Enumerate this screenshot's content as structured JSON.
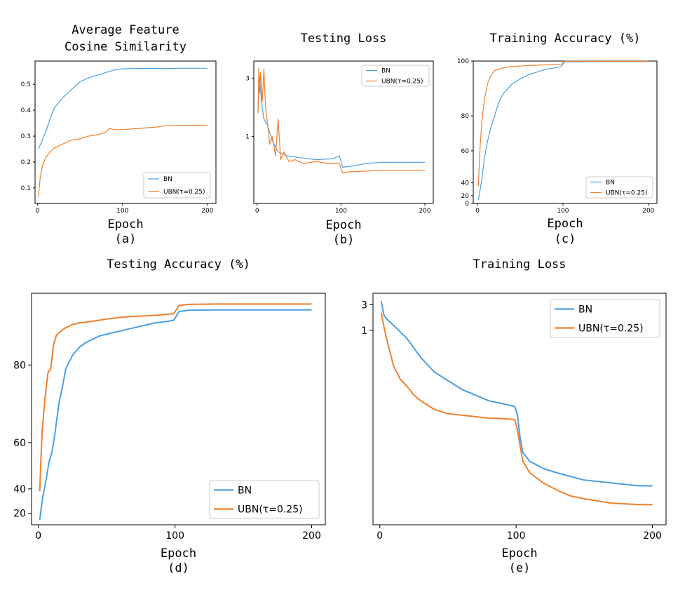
{
  "colors": {
    "bn": "#4a9fe3",
    "ubn": "#f07f2a"
  },
  "chart_data": [
    {
      "id": "a",
      "type": "line",
      "title": [
        "Average Feature",
        "Cosine Similarity"
      ],
      "xlabel": "Epoch",
      "sublabel": "(a)",
      "xlim": [
        -3,
        210
      ],
      "ylim": [
        0.04,
        0.59
      ],
      "xticks": [
        0,
        100,
        200
      ],
      "xtick_labels": [
        "0",
        "100",
        "200"
      ],
      "yticks": [
        0.1,
        0.2,
        0.3,
        0.4,
        0.5
      ],
      "ytick_labels": [
        "0.1",
        "0.2",
        "0.3",
        "0.4",
        "0.5"
      ],
      "legend": {
        "position": "bottom-right",
        "entries": [
          "BN",
          "UBN(τ=0.25)"
        ]
      },
      "series": [
        {
          "name": "BN",
          "points": [
            [
              1,
              0.25
            ],
            [
              5,
              0.28
            ],
            [
              10,
              0.32
            ],
            [
              15,
              0.37
            ],
            [
              20,
              0.41
            ],
            [
              25,
              0.43
            ],
            [
              30,
              0.45
            ],
            [
              40,
              0.48
            ],
            [
              50,
              0.51
            ],
            [
              60,
              0.525
            ],
            [
              70,
              0.535
            ],
            [
              80,
              0.545
            ],
            [
              90,
              0.555
            ],
            [
              100,
              0.56
            ],
            [
              120,
              0.562
            ],
            [
              150,
              0.561
            ],
            [
              170,
              0.562
            ],
            [
              200,
              0.562
            ]
          ]
        },
        {
          "name": "UBN(τ=0.25)",
          "points": [
            [
              1,
              0.065
            ],
            [
              3,
              0.14
            ],
            [
              6,
              0.19
            ],
            [
              10,
              0.22
            ],
            [
              15,
              0.24
            ],
            [
              20,
              0.255
            ],
            [
              30,
              0.27
            ],
            [
              40,
              0.285
            ],
            [
              50,
              0.29
            ],
            [
              60,
              0.3
            ],
            [
              70,
              0.305
            ],
            [
              80,
              0.315
            ],
            [
              85,
              0.33
            ],
            [
              90,
              0.325
            ],
            [
              100,
              0.325
            ],
            [
              120,
              0.33
            ],
            [
              140,
              0.335
            ],
            [
              150,
              0.34
            ],
            [
              175,
              0.342
            ],
            [
              200,
              0.342
            ]
          ]
        }
      ]
    },
    {
      "id": "b",
      "type": "line",
      "title": [
        "Testing Loss"
      ],
      "xlabel": "Epoch",
      "sublabel": "(b)",
      "xlim": [
        -4,
        210
      ],
      "ylim": [
        -1.6,
        4.2
      ],
      "yscale": "symlog",
      "xticks": [
        0,
        100,
        200
      ],
      "xtick_labels": [
        "0",
        "100",
        "200"
      ],
      "yticks": [
        1,
        3
      ],
      "ytick_labels": [
        "1",
        "3"
      ],
      "legend": {
        "position": "top-right",
        "entries": [
          "BN",
          "UBN(τ=0.25)"
        ]
      },
      "series": [
        {
          "name": "BN",
          "points": [
            [
              1,
              1.9
            ],
            [
              3,
              3.1
            ],
            [
              5,
              2.2
            ],
            [
              8,
              1.6
            ],
            [
              12,
              1.4
            ],
            [
              18,
              0.9
            ],
            [
              25,
              0.6
            ],
            [
              35,
              0.5
            ],
            [
              50,
              0.45
            ],
            [
              70,
              0.4
            ],
            [
              90,
              0.42
            ],
            [
              98,
              0.5
            ],
            [
              102,
              0.2
            ],
            [
              110,
              0.22
            ],
            [
              130,
              0.3
            ],
            [
              150,
              0.33
            ],
            [
              175,
              0.33
            ],
            [
              200,
              0.33
            ]
          ]
        },
        {
          "name": "UBN(τ=0.25)",
          "points": [
            [
              1,
              1.8
            ],
            [
              2,
              3.7
            ],
            [
              3,
              2.5
            ],
            [
              4,
              3.4
            ],
            [
              6,
              2.2
            ],
            [
              8,
              3.6
            ],
            [
              10,
              2.0
            ],
            [
              13,
              1.3
            ],
            [
              15,
              0.8
            ],
            [
              18,
              1.0
            ],
            [
              22,
              0.5
            ],
            [
              25,
              1.6
            ],
            [
              28,
              0.4
            ],
            [
              32,
              0.6
            ],
            [
              38,
              0.35
            ],
            [
              45,
              0.4
            ],
            [
              55,
              0.3
            ],
            [
              70,
              0.35
            ],
            [
              85,
              0.3
            ],
            [
              98,
              0.3
            ],
            [
              102,
              0.05
            ],
            [
              110,
              0.08
            ],
            [
              130,
              0.1
            ],
            [
              150,
              0.12
            ],
            [
              175,
              0.12
            ],
            [
              200,
              0.12
            ]
          ]
        }
      ]
    },
    {
      "id": "c",
      "type": "line",
      "title": [
        "Training Accuracy (%)"
      ],
      "xlabel": "Epoch",
      "sublabel": "(c)",
      "xlim": [
        -5,
        210
      ],
      "ylim": [
        -3,
        103
      ],
      "yscale": "compressed",
      "xticks": [
        0,
        100,
        200
      ],
      "xtick_labels": [
        "0",
        "100",
        "200"
      ],
      "yticks": [
        0,
        20,
        40,
        60,
        80,
        100
      ],
      "ytick_labels": [
        "0",
        "20",
        "40",
        "60",
        "80",
        "100"
      ],
      "legend": {
        "position": "bottom-right",
        "entries": [
          "BN",
          "UBN(τ=0.25)"
        ]
      },
      "series": [
        {
          "name": "BN",
          "points": [
            [
              1,
              10
            ],
            [
              3,
              28
            ],
            [
              5,
              42
            ],
            [
              8,
              55
            ],
            [
              12,
              66
            ],
            [
              16,
              74
            ],
            [
              20,
              80
            ],
            [
              25,
              85
            ],
            [
              30,
              88
            ],
            [
              40,
              91.5
            ],
            [
              50,
              93.5
            ],
            [
              60,
              95
            ],
            [
              70,
              96
            ],
            [
              80,
              97
            ],
            [
              90,
              97.5
            ],
            [
              98,
              98
            ],
            [
              102,
              99.7
            ],
            [
              150,
              99.8
            ],
            [
              200,
              99.8
            ]
          ]
        },
        {
          "name": "UBN(τ=0.25)",
          "points": [
            [
              1,
              35
            ],
            [
              3,
              62
            ],
            [
              5,
              76
            ],
            [
              8,
              86
            ],
            [
              12,
              92
            ],
            [
              16,
              95
            ],
            [
              20,
              96.5
            ],
            [
              30,
              97.5
            ],
            [
              40,
              98
            ],
            [
              60,
              98.4
            ],
            [
              80,
              98.6
            ],
            [
              98,
              98.8
            ],
            [
              102,
              99.9
            ],
            [
              150,
              99.9
            ],
            [
              200,
              99.9
            ]
          ]
        }
      ]
    },
    {
      "id": "d",
      "type": "line",
      "title": [
        "Testing Accuracy (%)"
      ],
      "xlabel": "Epoch",
      "sublabel": "(d)",
      "xlim": [
        -5,
        210
      ],
      "ylim": [
        13,
        104
      ],
      "yscale": "compressed",
      "xticks": [
        0,
        100,
        200
      ],
      "xtick_labels": [
        "0",
        "100",
        "200"
      ],
      "yticks": [
        20,
        40,
        60,
        80
      ],
      "ytick_labels": [
        "20",
        "40",
        "60",
        "80"
      ],
      "legend": {
        "position": "bottom-right",
        "entries": [
          "BN",
          "UBN(τ=0.25)"
        ]
      },
      "series": [
        {
          "name": "BN",
          "points": [
            [
              1,
              16
            ],
            [
              3,
              32
            ],
            [
              5,
              42
            ],
            [
              8,
              52
            ],
            [
              10,
              56
            ],
            [
              12,
              62
            ],
            [
              15,
              70
            ],
            [
              18,
              75
            ],
            [
              20,
              79
            ],
            [
              25,
              83
            ],
            [
              30,
              85.5
            ],
            [
              35,
              87
            ],
            [
              40,
              88
            ],
            [
              45,
              89
            ],
            [
              50,
              89.5
            ],
            [
              55,
              90
            ],
            [
              60,
              90.5
            ],
            [
              65,
              91
            ],
            [
              70,
              91.5
            ],
            [
              75,
              92
            ],
            [
              80,
              92.5
            ],
            [
              85,
              93
            ],
            [
              90,
              93.2
            ],
            [
              95,
              93.5
            ],
            [
              99,
              93.8
            ],
            [
              103,
              96.5
            ],
            [
              110,
              96.9
            ],
            [
              130,
              97
            ],
            [
              150,
              97
            ],
            [
              170,
              97
            ],
            [
              200,
              97
            ]
          ]
        },
        {
          "name": "UBN(τ=0.25)",
          "points": [
            [
              1,
              38
            ],
            [
              2,
              55
            ],
            [
              3,
              64
            ],
            [
              5,
              72
            ],
            [
              7,
              78
            ],
            [
              9,
              79
            ],
            [
              11,
              86
            ],
            [
              13,
              89
            ],
            [
              15,
              90
            ],
            [
              18,
              91
            ],
            [
              20,
              91.5
            ],
            [
              25,
              92.5
            ],
            [
              30,
              93
            ],
            [
              40,
              93.5
            ],
            [
              50,
              94.2
            ],
            [
              60,
              94.7
            ],
            [
              70,
              95
            ],
            [
              80,
              95.2
            ],
            [
              90,
              95.5
            ],
            [
              99,
              95.8
            ],
            [
              103,
              98.4
            ],
            [
              110,
              98.7
            ],
            [
              130,
              98.8
            ],
            [
              160,
              98.8
            ],
            [
              200,
              98.8
            ]
          ]
        }
      ]
    },
    {
      "id": "e",
      "type": "line",
      "title": [
        "Training Loss"
      ],
      "xlabel": "Epoch",
      "sublabel": "(e)",
      "xlim": [
        -5,
        210
      ],
      "ylim": [
        -5.3,
        3.6
      ],
      "yscale": "symlog",
      "xticks": [
        0,
        100,
        200
      ],
      "xtick_labels": [
        "0",
        "100",
        "200"
      ],
      "yticks": [
        1,
        3
      ],
      "ytick_labels": [
        "1",
        "3"
      ],
      "legend": {
        "position": "top-right",
        "entries": [
          "BN",
          "UBN(τ=0.25)"
        ]
      },
      "series": [
        {
          "name": "BN",
          "points": [
            [
              1,
              3.2
            ],
            [
              3,
              2.2
            ],
            [
              5,
              1.9
            ],
            [
              10,
              1.4
            ],
            [
              20,
              0.8
            ],
            [
              30,
              0.35
            ],
            [
              40,
              0.0
            ],
            [
              50,
              -0.3
            ],
            [
              60,
              -0.6
            ],
            [
              70,
              -0.8
            ],
            [
              80,
              -1.0
            ],
            [
              90,
              -1.1
            ],
            [
              99,
              -1.2
            ],
            [
              101,
              -1.5
            ],
            [
              103,
              -2.3
            ],
            [
              105,
              -2.8
            ],
            [
              110,
              -3.1
            ],
            [
              120,
              -3.35
            ],
            [
              130,
              -3.5
            ],
            [
              150,
              -3.75
            ],
            [
              170,
              -3.85
            ],
            [
              190,
              -3.95
            ],
            [
              200,
              -3.95
            ]
          ]
        },
        {
          "name": "UBN(τ=0.25)",
          "points": [
            [
              1,
              2.4
            ],
            [
              3,
              1.3
            ],
            [
              5,
              0.8
            ],
            [
              10,
              0.15
            ],
            [
              15,
              -0.25
            ],
            [
              20,
              -0.5
            ],
            [
              25,
              -0.8
            ],
            [
              30,
              -1.0
            ],
            [
              40,
              -1.3
            ],
            [
              50,
              -1.45
            ],
            [
              60,
              -1.5
            ],
            [
              70,
              -1.55
            ],
            [
              80,
              -1.6
            ],
            [
              90,
              -1.62
            ],
            [
              99,
              -1.65
            ],
            [
              101,
              -2.0
            ],
            [
              103,
              -2.6
            ],
            [
              105,
              -3.1
            ],
            [
              110,
              -3.5
            ],
            [
              120,
              -3.85
            ],
            [
              130,
              -4.1
            ],
            [
              140,
              -4.3
            ],
            [
              150,
              -4.4
            ],
            [
              170,
              -4.55
            ],
            [
              190,
              -4.6
            ],
            [
              200,
              -4.6
            ]
          ]
        }
      ]
    }
  ]
}
